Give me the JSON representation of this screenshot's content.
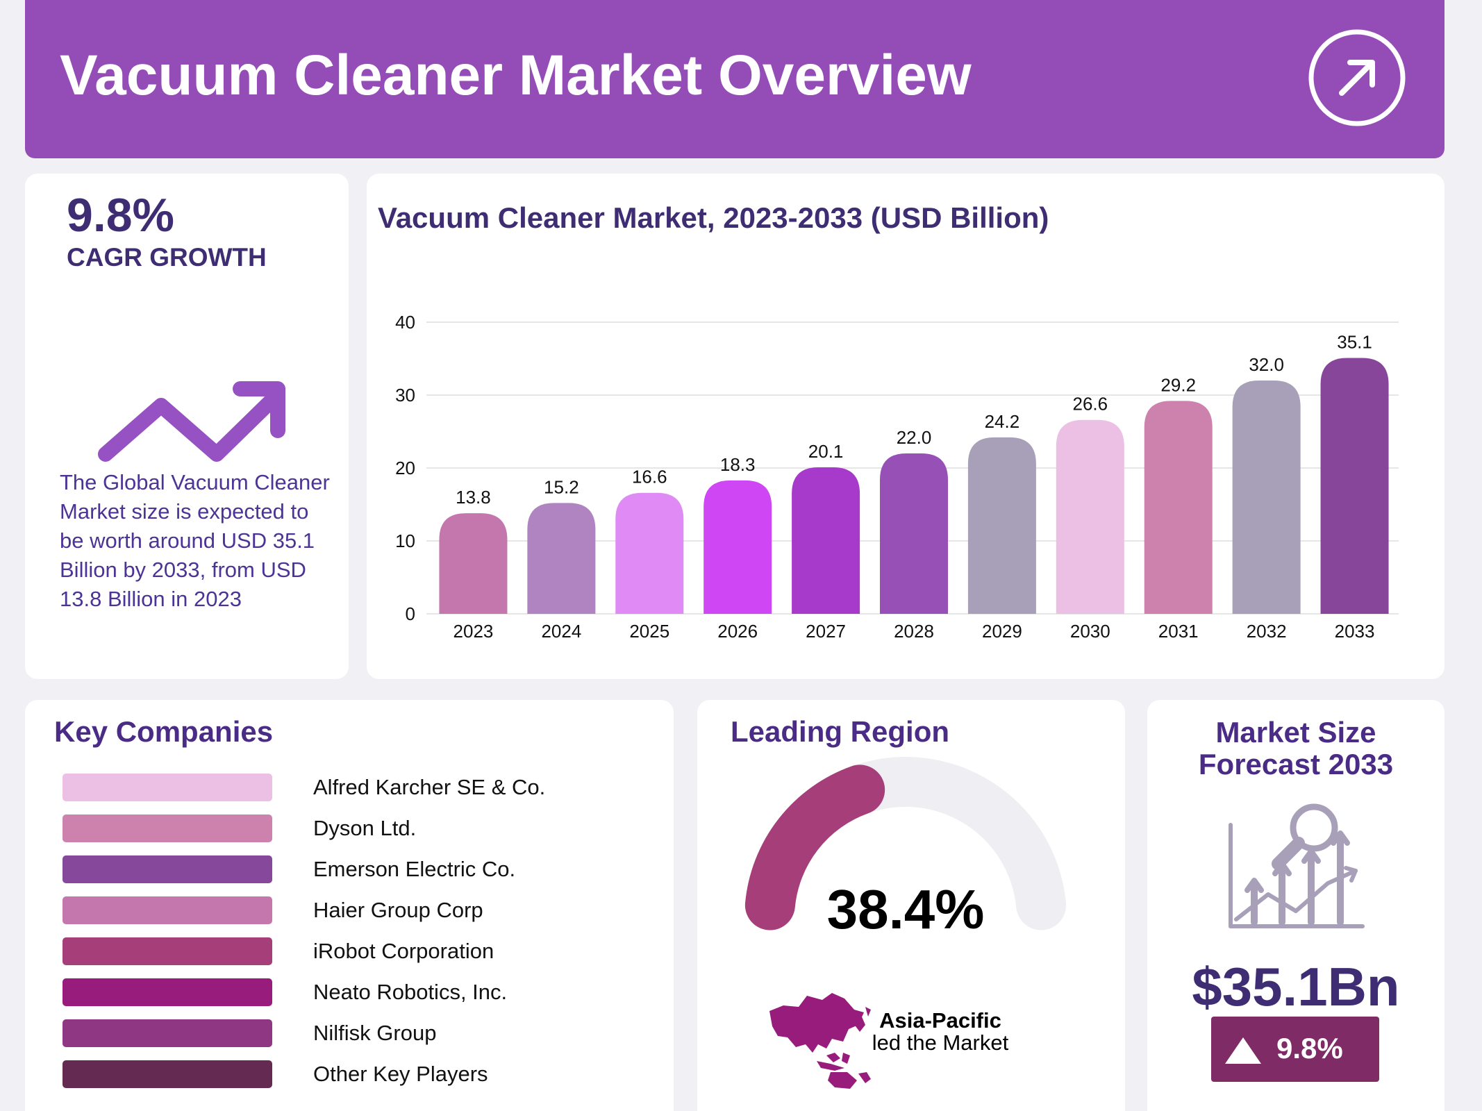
{
  "header": {
    "title": "Vacuum Cleaner Market Overview",
    "icon": "arrow-up-right-icon"
  },
  "cagr": {
    "value": "9.8%",
    "label": "CAGR GROWTH",
    "icon": "trend-up-arrow-icon",
    "description": "The Global Vacuum Cleaner Market size is expected to be worth around USD 35.1 Billion by 2033, from USD 13.8 Billion in 2023"
  },
  "chart_data": {
    "type": "bar",
    "title": "Vacuum Cleaner Market, 2023-2033 (USD Billion)",
    "xlabel": "",
    "ylabel": "",
    "ylim": [
      0,
      40
    ],
    "yticks": [
      0,
      10,
      20,
      30,
      40
    ],
    "grid": true,
    "categories": [
      "2023",
      "2024",
      "2025",
      "2026",
      "2027",
      "2028",
      "2029",
      "2030",
      "2031",
      "2032",
      "2033"
    ],
    "values": [
      13.8,
      15.2,
      16.6,
      18.3,
      20.1,
      22.0,
      24.2,
      26.6,
      29.2,
      32.0,
      35.1
    ],
    "value_labels": [
      "13.8",
      "15.2",
      "16.6",
      "18.3",
      "20.1",
      "22.0",
      "24.2",
      "26.6",
      "29.2",
      "32.0",
      "35.1"
    ],
    "colors": [
      "#c477ad",
      "#b084c1",
      "#e08af5",
      "#cf46f4",
      "#a83acb",
      "#9650b6",
      "#a8a0b8",
      "#ecc0e4",
      "#cd82ad",
      "#a8a0b8",
      "#874699"
    ]
  },
  "companies": {
    "title": "Key Companies",
    "items": [
      {
        "name": "Alfred Karcher SE & Co.",
        "color": "#ecc0e4"
      },
      {
        "name": "Dyson Ltd.",
        "color": "#cd82ad"
      },
      {
        "name": "Emerson Electric Co.",
        "color": "#86489b"
      },
      {
        "name": "Haier Group Corp",
        "color": "#c477ad"
      },
      {
        "name": "iRobot Corporation",
        "color": "#a53e79"
      },
      {
        "name": "Neato Robotics, Inc.",
        "color": "#981c7c"
      },
      {
        "name": "Nilfisk Group",
        "color": "#8f3783"
      },
      {
        "name": "Other Key Players",
        "color": "#652a52"
      }
    ]
  },
  "region": {
    "title": "Leading Region",
    "share": 38.4,
    "share_label": "38.4%",
    "name": "Asia-Pacific",
    "subtitle": "led the Market",
    "map_icon": "asia-pacific-map-icon",
    "colors": {
      "arc": "#a53e79",
      "track": "#efeef3",
      "map": "#981c7c"
    }
  },
  "forecast": {
    "title_line1": "Market Size",
    "title_line2": "Forecast 2033",
    "icon": "growth-analysis-icon",
    "value": "$35.1Bn",
    "growth": "9.8%",
    "badge_color": "#7e2b66"
  }
}
